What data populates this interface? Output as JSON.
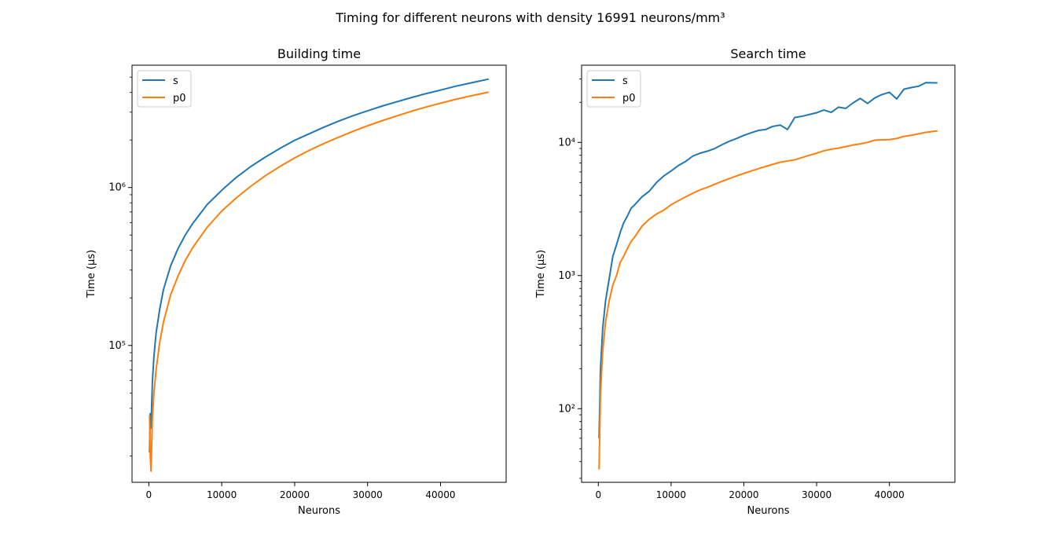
{
  "figure": {
    "suptitle": "Timing for different neurons with density 16991 neurons/mm³"
  },
  "colors": {
    "s": "#1f77b4",
    "p0": "#ff7f0e"
  },
  "chart_data": [
    {
      "type": "line",
      "title": "Building time",
      "xlabel": "Neurons",
      "ylabel": "Time (µs)",
      "yscale": "log",
      "xlim": [
        -2300,
        49000
      ],
      "ylim": [
        13600,
        5950000
      ],
      "xticks": [
        0,
        10000,
        20000,
        30000,
        40000
      ],
      "xtick_labels": [
        "0",
        "10000",
        "20000",
        "30000",
        "40000"
      ],
      "yticks": [
        100000,
        1000000
      ],
      "ytick_labels": [
        "10⁵",
        "10⁶"
      ],
      "grid": false,
      "legend": {
        "position": "upper-left",
        "entries": [
          "s",
          "p0"
        ]
      },
      "series": [
        {
          "name": "s",
          "points": [
            [
              100,
              21000
            ],
            [
              200,
              37000
            ],
            [
              300,
              30000
            ],
            [
              500,
              60000
            ],
            [
              700,
              85000
            ],
            [
              1000,
              120000
            ],
            [
              1500,
              170000
            ],
            [
              2000,
              225000
            ],
            [
              3000,
              320000
            ],
            [
              4000,
              410000
            ],
            [
              5000,
              500000
            ],
            [
              6000,
              590000
            ],
            [
              8000,
              780000
            ],
            [
              10000,
              960000
            ],
            [
              12000,
              1160000
            ],
            [
              14000,
              1360000
            ],
            [
              16000,
              1560000
            ],
            [
              18000,
              1770000
            ],
            [
              20000,
              1990000
            ],
            [
              22000,
              2190000
            ],
            [
              24000,
              2410000
            ],
            [
              26000,
              2630000
            ],
            [
              28000,
              2850000
            ],
            [
              30000,
              3060000
            ],
            [
              32000,
              3280000
            ],
            [
              34000,
              3490000
            ],
            [
              36000,
              3710000
            ],
            [
              38000,
              3930000
            ],
            [
              40000,
              4140000
            ],
            [
              42000,
              4370000
            ],
            [
              44000,
              4580000
            ],
            [
              46600,
              4860000
            ]
          ]
        },
        {
          "name": "p0",
          "points": [
            [
              100,
              36000
            ],
            [
              200,
              20000
            ],
            [
              300,
              16000
            ],
            [
              500,
              35000
            ],
            [
              700,
              50000
            ],
            [
              1000,
              70000
            ],
            [
              1500,
              105000
            ],
            [
              2000,
              140000
            ],
            [
              3000,
              210000
            ],
            [
              4000,
              275000
            ],
            [
              5000,
              345000
            ],
            [
              6000,
              415000
            ],
            [
              8000,
              560000
            ],
            [
              10000,
              710000
            ],
            [
              12000,
              860000
            ],
            [
              14000,
              1020000
            ],
            [
              16000,
              1190000
            ],
            [
              18000,
              1360000
            ],
            [
              20000,
              1540000
            ],
            [
              22000,
              1720000
            ],
            [
              24000,
              1900000
            ],
            [
              26000,
              2080000
            ],
            [
              28000,
              2270000
            ],
            [
              30000,
              2460000
            ],
            [
              32000,
              2650000
            ],
            [
              34000,
              2840000
            ],
            [
              36000,
              3040000
            ],
            [
              38000,
              3230000
            ],
            [
              40000,
              3420000
            ],
            [
              42000,
              3610000
            ],
            [
              44000,
              3790000
            ],
            [
              46600,
              4020000
            ]
          ]
        }
      ]
    },
    {
      "type": "line",
      "title": "Search time",
      "xlabel": "Neurons",
      "ylabel": "Time (µs)",
      "yscale": "log",
      "xlim": [
        -2300,
        49000
      ],
      "ylim": [
        28,
        38000
      ],
      "xticks": [
        0,
        10000,
        20000,
        30000,
        40000
      ],
      "xtick_labels": [
        "0",
        "10000",
        "20000",
        "30000",
        "40000"
      ],
      "yticks": [
        100,
        1000,
        10000
      ],
      "ytick_labels": [
        "10²",
        "10³",
        "10⁴"
      ],
      "grid": false,
      "legend": {
        "position": "upper-left",
        "entries": [
          "s",
          "p0"
        ]
      },
      "series": [
        {
          "name": "s",
          "points": [
            [
              100,
              60
            ],
            [
              300,
              200
            ],
            [
              600,
              400
            ],
            [
              1000,
              650
            ],
            [
              1500,
              950
            ],
            [
              2000,
              1400
            ],
            [
              2500,
              1700
            ],
            [
              3000,
              2100
            ],
            [
              3500,
              2500
            ],
            [
              4000,
              2800
            ],
            [
              4500,
              3200
            ],
            [
              5000,
              3400
            ],
            [
              6000,
              3900
            ],
            [
              7000,
              4300
            ],
            [
              8000,
              5000
            ],
            [
              9000,
              5600
            ],
            [
              10000,
              6100
            ],
            [
              11000,
              6700
            ],
            [
              12000,
              7200
            ],
            [
              13000,
              7900
            ],
            [
              14000,
              8300
            ],
            [
              15000,
              8600
            ],
            [
              16000,
              9000
            ],
            [
              17000,
              9600
            ],
            [
              18000,
              10200
            ],
            [
              19000,
              10700
            ],
            [
              20000,
              11300
            ],
            [
              21000,
              11800
            ],
            [
              22000,
              12300
            ],
            [
              23000,
              12500
            ],
            [
              24000,
              13200
            ],
            [
              25000,
              13500
            ],
            [
              26000,
              12500
            ],
            [
              27000,
              15400
            ],
            [
              28000,
              15700
            ],
            [
              29000,
              16200
            ],
            [
              30000,
              16700
            ],
            [
              31000,
              17500
            ],
            [
              32000,
              16800
            ],
            [
              33000,
              18400
            ],
            [
              34000,
              18000
            ],
            [
              35000,
              19800
            ],
            [
              36000,
              21400
            ],
            [
              37000,
              19600
            ],
            [
              38000,
              21600
            ],
            [
              39000,
              22900
            ],
            [
              40000,
              23800
            ],
            [
              41000,
              21200
            ],
            [
              42000,
              25100
            ],
            [
              43000,
              25800
            ],
            [
              44000,
              26400
            ],
            [
              45000,
              28100
            ],
            [
              46600,
              28000
            ]
          ]
        },
        {
          "name": "p0",
          "points": [
            [
              100,
              35
            ],
            [
              300,
              130
            ],
            [
              600,
              270
            ],
            [
              1000,
              450
            ],
            [
              1500,
              650
            ],
            [
              2000,
              850
            ],
            [
              2500,
              1000
            ],
            [
              3000,
              1250
            ],
            [
              3500,
              1400
            ],
            [
              4000,
              1600
            ],
            [
              4500,
              1800
            ],
            [
              5000,
              1950
            ],
            [
              6000,
              2350
            ],
            [
              7000,
              2650
            ],
            [
              8000,
              2900
            ],
            [
              9000,
              3100
            ],
            [
              10000,
              3400
            ],
            [
              11000,
              3650
            ],
            [
              12000,
              3900
            ],
            [
              13000,
              4150
            ],
            [
              14000,
              4400
            ],
            [
              15000,
              4600
            ],
            [
              16000,
              4850
            ],
            [
              17000,
              5100
            ],
            [
              18000,
              5350
            ],
            [
              19000,
              5600
            ],
            [
              20000,
              5850
            ],
            [
              21000,
              6100
            ],
            [
              22000,
              6350
            ],
            [
              23000,
              6600
            ],
            [
              24000,
              6850
            ],
            [
              25000,
              7100
            ],
            [
              26000,
              7250
            ],
            [
              27000,
              7400
            ],
            [
              28000,
              7700
            ],
            [
              29000,
              8000
            ],
            [
              30000,
              8300
            ],
            [
              31000,
              8650
            ],
            [
              32000,
              8900
            ],
            [
              33000,
              9050
            ],
            [
              34000,
              9300
            ],
            [
              35000,
              9550
            ],
            [
              36000,
              9750
            ],
            [
              37000,
              10000
            ],
            [
              38000,
              10400
            ],
            [
              39000,
              10450
            ],
            [
              40000,
              10500
            ],
            [
              41000,
              10700
            ],
            [
              42000,
              11100
            ],
            [
              43000,
              11300
            ],
            [
              44000,
              11600
            ],
            [
              45000,
              11900
            ],
            [
              46600,
              12200
            ]
          ]
        }
      ]
    }
  ]
}
